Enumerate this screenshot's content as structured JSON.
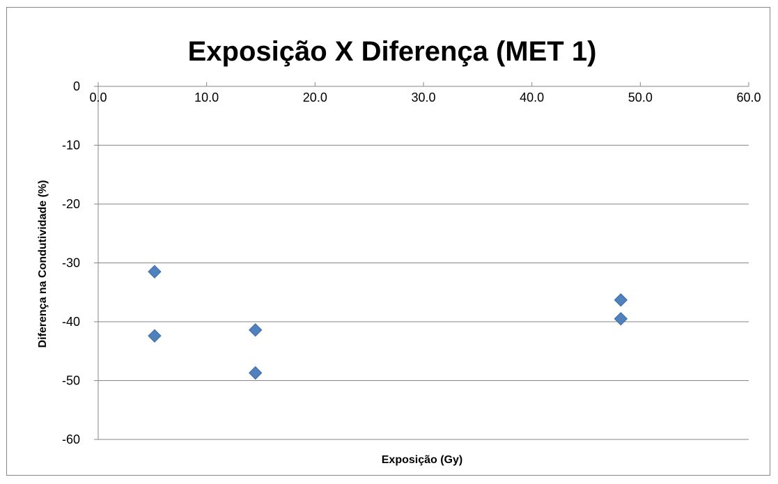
{
  "chart_data": {
    "type": "scatter",
    "title": "Exposição X Diferença (MET 1)",
    "xlabel": "Exposição (Gy)",
    "ylabel": "Diferença na Condutividade (%)",
    "xlim": [
      0,
      60
    ],
    "ylim": [
      -60,
      0
    ],
    "x_ticks": [
      "0.0",
      "10.0",
      "20.0",
      "30.0",
      "40.0",
      "50.0",
      "60.0"
    ],
    "y_ticks": [
      "0",
      "-10",
      "-20",
      "-30",
      "-40",
      "-50",
      "-60"
    ],
    "x_tick_values": [
      0,
      10,
      20,
      30,
      40,
      50,
      60
    ],
    "y_tick_values": [
      0,
      -10,
      -20,
      -30,
      -40,
      -50,
      -60
    ],
    "grid": "horizontal",
    "legend": "none",
    "marker": "diamond",
    "marker_color": "#4F81BD",
    "series": [
      {
        "points": [
          {
            "x": 5.2,
            "y": -31.5
          },
          {
            "x": 5.2,
            "y": -42.4
          },
          {
            "x": 14.5,
            "y": -41.4
          },
          {
            "x": 14.5,
            "y": -48.7
          },
          {
            "x": 48.2,
            "y": -36.3
          },
          {
            "x": 48.2,
            "y": -39.5
          }
        ]
      }
    ]
  }
}
